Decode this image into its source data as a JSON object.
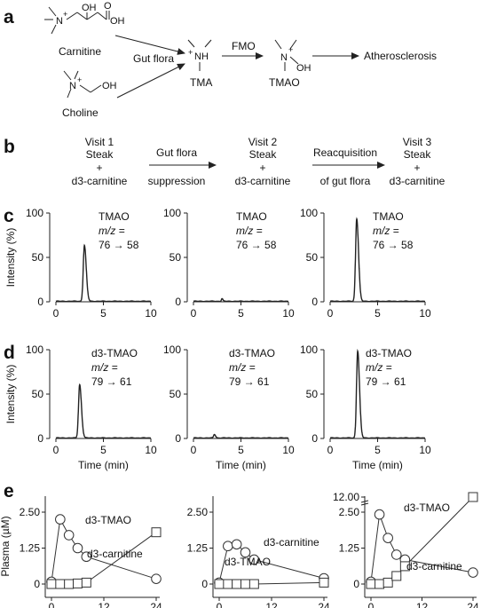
{
  "panel_labels": {
    "a": "a",
    "b": "b",
    "c": "c",
    "d": "d",
    "e": "e"
  },
  "panel_a": {
    "carnitine": "Carnitine",
    "choline": "Choline",
    "gut_flora": "Gut flora",
    "tma": "TMA",
    "fmo": "FMO",
    "tmao": "TMAO",
    "atherosclerosis": "Atherosclerosis"
  },
  "panel_b": {
    "visit1": [
      "Visit 1",
      "Steak",
      "+",
      "d3-carnitine"
    ],
    "arrow1": [
      "Gut flora",
      "suppression"
    ],
    "visit2": [
      "Visit 2",
      "Steak",
      "+",
      "d3-carnitine"
    ],
    "arrow2": [
      "Reacquisition",
      "of gut flora"
    ],
    "visit3": [
      "Visit 3",
      "Steak",
      "+",
      "d3-carnitine"
    ]
  },
  "chart_data": [
    {
      "id": "c1",
      "type": "line",
      "ylabel": "Intensity (%)",
      "xlabel": "",
      "xticks": [
        0,
        5,
        10
      ],
      "yticks": [
        0,
        50,
        100
      ],
      "xlim": [
        0,
        10
      ],
      "ylim": [
        0,
        100
      ],
      "annotation": [
        "TMAO",
        "m/z =",
        "76 → 58"
      ],
      "peak_x": 3.0,
      "peak_y": 63,
      "peak_w": 0.12,
      "bumps": []
    },
    {
      "id": "c2",
      "type": "line",
      "ylabel": "",
      "xlabel": "",
      "xticks": [
        0,
        5,
        10
      ],
      "yticks": [
        0,
        50,
        100
      ],
      "xlim": [
        0,
        10
      ],
      "ylim": [
        0,
        100
      ],
      "annotation": [
        "TMAO",
        "m/z =",
        "76 → 58"
      ],
      "peak_x": 3.0,
      "peak_y": 3,
      "peak_w": 0.06,
      "bumps": []
    },
    {
      "id": "c3",
      "type": "line",
      "ylabel": "",
      "xlabel": "",
      "xticks": [
        0,
        5,
        10
      ],
      "yticks": [
        0,
        50,
        100
      ],
      "xlim": [
        0,
        10
      ],
      "ylim": [
        0,
        100
      ],
      "annotation": [
        "TMAO",
        "m/z =",
        "76 → 58"
      ],
      "peak_x": 2.8,
      "peak_y": 93,
      "peak_w": 0.12,
      "bumps": []
    },
    {
      "id": "d1",
      "type": "line",
      "ylabel": "Intensity (%)",
      "xlabel": "Time (min)",
      "xticks": [
        0,
        5,
        10
      ],
      "yticks": [
        0,
        50,
        100
      ],
      "xlim": [
        0,
        10
      ],
      "ylim": [
        0,
        100
      ],
      "annotation": [
        "d3-TMAO",
        "m/z =",
        "79 → 61"
      ],
      "peak_x": 2.5,
      "peak_y": 60,
      "peak_w": 0.12,
      "bumps": []
    },
    {
      "id": "d2",
      "type": "line",
      "ylabel": "",
      "xlabel": "Time (min)",
      "xticks": [
        0,
        5,
        10
      ],
      "yticks": [
        0,
        50,
        100
      ],
      "xlim": [
        0,
        10
      ],
      "ylim": [
        0,
        100
      ],
      "annotation": [
        "d3-TMAO",
        "m/z =",
        "79 → 61"
      ],
      "peak_x": 2.2,
      "peak_y": 4,
      "peak_w": 0.08,
      "bumps": []
    },
    {
      "id": "d3",
      "type": "line",
      "ylabel": "",
      "xlabel": "Time (min)",
      "xticks": [
        0,
        5,
        10
      ],
      "yticks": [
        0,
        50,
        100
      ],
      "xlim": [
        0,
        10
      ],
      "ylim": [
        0,
        100
      ],
      "annotation": [
        "d3-TMAO",
        "m/z =",
        "79 → 61"
      ],
      "peak_x": 2.9,
      "peak_y": 98,
      "peak_w": 0.12,
      "bumps": []
    },
    {
      "id": "e1",
      "type": "line",
      "ylabel": "Plasma (µM)",
      "xlabel": "Time (h)",
      "xticks": [
        0,
        12,
        24
      ],
      "yticks": [
        "0",
        "1.25",
        "2.50"
      ],
      "ylim": [
        0,
        2.5
      ],
      "series": [
        {
          "name": "d3-carnitine",
          "marker": "circle",
          "x": [
            0,
            2,
            4,
            6,
            8,
            24
          ],
          "y": [
            0.08,
            2.25,
            1.7,
            1.25,
            0.95,
            0.18
          ]
        },
        {
          "name": "d3-TMAO",
          "marker": "square",
          "x": [
            0,
            2,
            4,
            6,
            8,
            24
          ],
          "y": [
            0,
            0,
            0,
            0.02,
            0.05,
            1.8
          ]
        }
      ]
    },
    {
      "id": "e2",
      "type": "line",
      "ylabel": "",
      "xlabel": "Time (h)",
      "xticks": [
        0,
        12,
        24
      ],
      "yticks": [
        "0",
        "1.25",
        "2.50"
      ],
      "ylim": [
        0,
        2.5
      ],
      "series": [
        {
          "name": "d3-carnitine",
          "marker": "circle",
          "x": [
            0,
            2,
            4,
            6,
            8,
            24
          ],
          "y": [
            0.05,
            1.32,
            1.38,
            1.1,
            0.85,
            0.2
          ]
        },
        {
          "name": "d3-TMAO",
          "marker": "square",
          "x": [
            0,
            2,
            4,
            6,
            8,
            24
          ],
          "y": [
            0,
            0,
            0,
            0,
            0,
            0.05
          ]
        }
      ]
    },
    {
      "id": "e3",
      "type": "line",
      "ylabel": "",
      "xlabel": "Time (h)",
      "xticks": [
        0,
        12,
        24
      ],
      "yticks": [
        "0",
        "1.25",
        "2.50",
        "12.00"
      ],
      "ylim": [
        0,
        2.5
      ],
      "axis_break": true,
      "series": [
        {
          "name": "d3-carnitine",
          "marker": "circle",
          "x": [
            0,
            2,
            4,
            6,
            8,
            24
          ],
          "y": [
            0.08,
            2.42,
            1.6,
            1.02,
            0.85,
            0.4
          ]
        },
        {
          "name": "d3-TMAO",
          "marker": "square",
          "x": [
            0,
            2,
            4,
            6,
            8,
            24
          ],
          "y": [
            0,
            0,
            0.05,
            0.28,
            0.62,
            12.0
          ]
        }
      ]
    }
  ]
}
